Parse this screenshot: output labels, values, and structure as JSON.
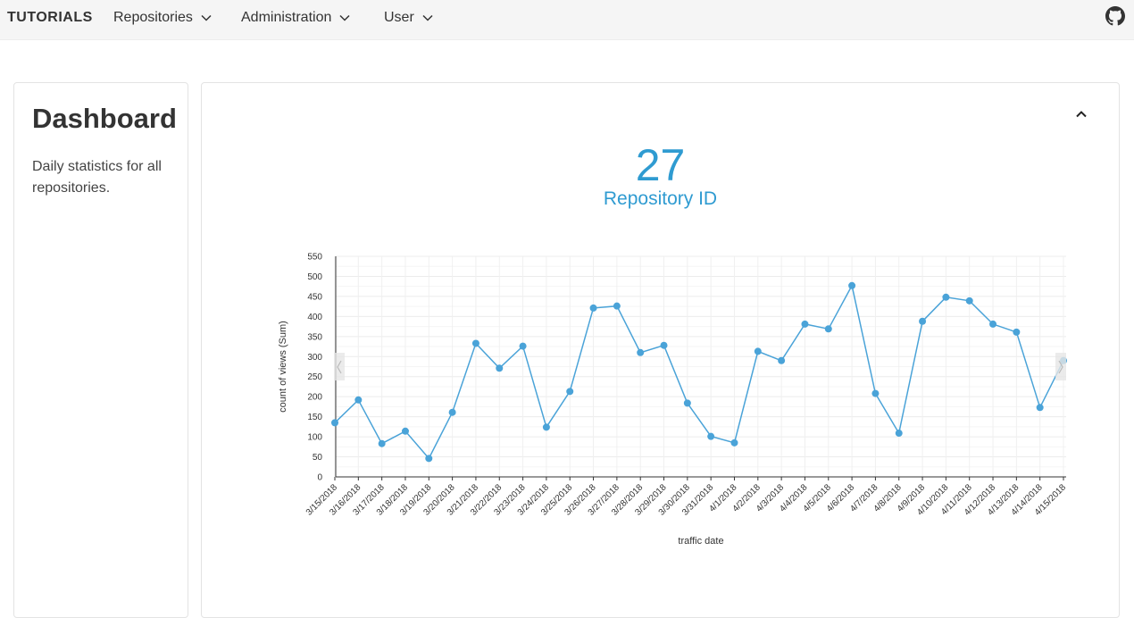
{
  "navbar": {
    "brand": "TUTORIALS",
    "items": [
      {
        "label": "Repositories"
      },
      {
        "label": "Administration"
      },
      {
        "label": "User"
      }
    ],
    "github_icon": "github-icon"
  },
  "sidebar": {
    "title": "Dashboard",
    "description": "Daily statistics for all repositories."
  },
  "kpi": {
    "value": "27",
    "label": "Repository ID"
  },
  "colors": {
    "accent": "#2f9bd1",
    "line": "#4aa3d8"
  },
  "chart_data": {
    "type": "line",
    "xlabel": "traffic date",
    "ylabel": "count of views (Sum)",
    "ylim": [
      0,
      550
    ],
    "yticks": [
      0,
      50,
      100,
      150,
      200,
      250,
      300,
      350,
      400,
      450,
      500,
      550
    ],
    "grid": true,
    "categories": [
      "3/15/2018",
      "3/16/2018",
      "3/17/2018",
      "3/18/2018",
      "3/19/2018",
      "3/20/2018",
      "3/21/2018",
      "3/22/2018",
      "3/23/2018",
      "3/24/2018",
      "3/25/2018",
      "3/26/2018",
      "3/27/2018",
      "3/28/2018",
      "3/29/2018",
      "3/30/2018",
      "3/31/2018",
      "4/1/2018",
      "4/2/2018",
      "4/3/2018",
      "4/4/2018",
      "4/5/2018",
      "4/6/2018",
      "4/7/2018",
      "4/8/2018",
      "4/9/2018",
      "4/10/2018",
      "4/11/2018",
      "4/12/2018",
      "4/13/2018",
      "4/14/2018",
      "4/15/2018"
    ],
    "values": [
      135,
      192,
      83,
      114,
      46,
      161,
      333,
      271,
      326,
      124,
      213,
      421,
      426,
      310,
      328,
      184,
      101,
      85,
      313,
      290,
      381,
      369,
      477,
      208,
      109,
      388,
      448,
      439,
      381,
      361,
      173,
      290
    ]
  }
}
